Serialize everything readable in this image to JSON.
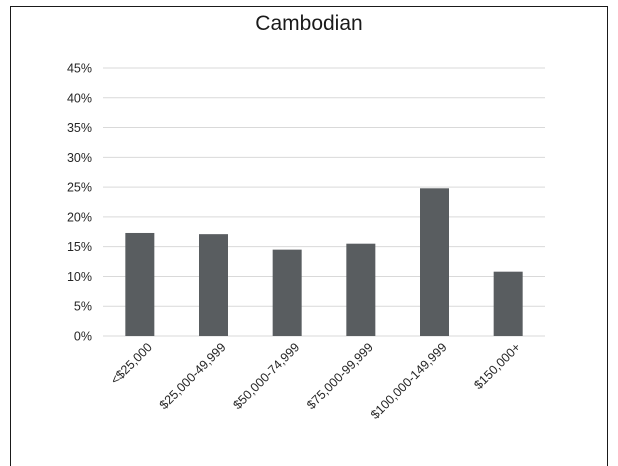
{
  "chart_data": {
    "type": "bar",
    "title": "Cambodian",
    "categories": [
      "<$25,000",
      "$25,000-49,999",
      "$50,000-74,999",
      "$75,000-99,999",
      "$100,000-149,999",
      "$150,000+"
    ],
    "values": [
      17.3,
      17.1,
      14.5,
      15.5,
      24.8,
      10.8
    ],
    "yticks": [
      "0%",
      "5%",
      "10%",
      "15%",
      "20%",
      "25%",
      "30%",
      "35%",
      "40%",
      "45%"
    ],
    "ylim": [
      0,
      45
    ],
    "grid": true,
    "bar_color": "#595d60",
    "grid_color": "#d9d9d9"
  }
}
